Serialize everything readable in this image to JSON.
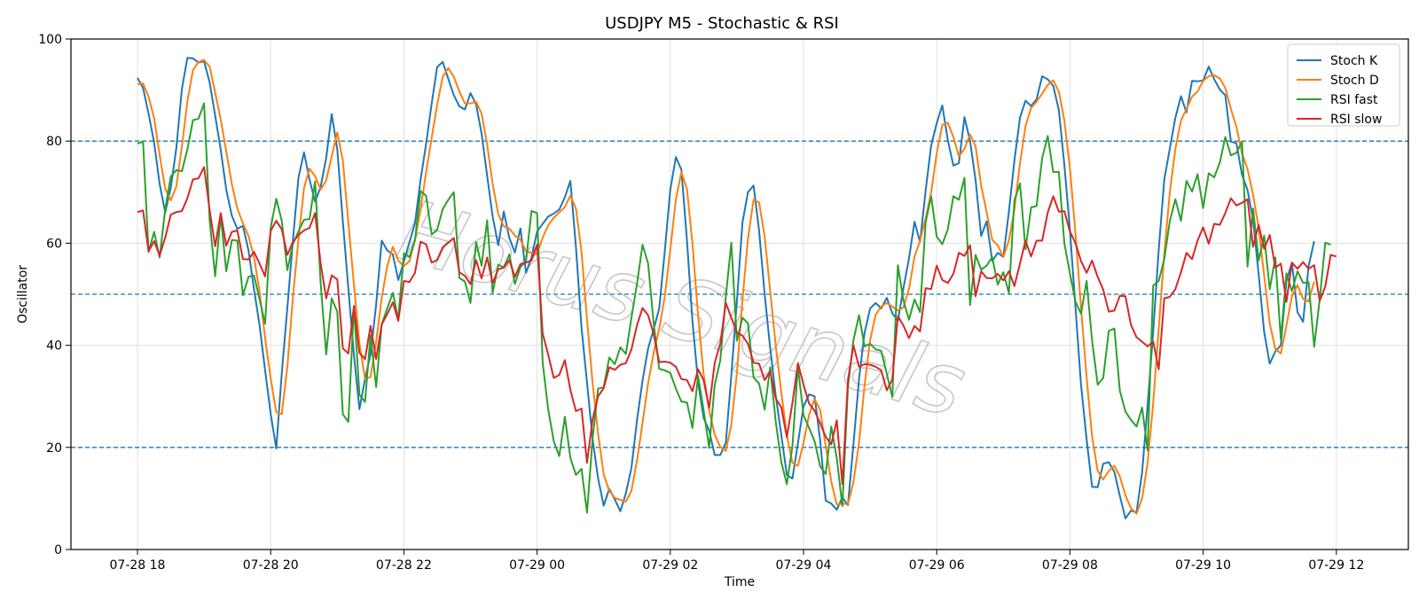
{
  "chart_data": {
    "type": "line",
    "title": "USDJPY M5 - Stochastic & RSI",
    "xlabel": "Time",
    "ylabel": "Oscillator",
    "ylim": [
      0,
      100
    ],
    "yticks": [
      0,
      20,
      40,
      60,
      80,
      100
    ],
    "xticks": [
      "07-28 18",
      "07-28 20",
      "07-28 22",
      "07-29 00",
      "07-29 02",
      "07-29 04",
      "07-29 06",
      "07-29 08",
      "07-29 10",
      "07-29 12"
    ],
    "x_start": "07-28 18:00",
    "x_step_minutes": 5,
    "grid": true,
    "legend_position": "top-right",
    "reference_lines": [
      80,
      50,
      20
    ],
    "watermark": "Horus Signals",
    "series": [
      {
        "name": "Stoch K",
        "color": "#1f77b4",
        "values": [
          92.4,
          90.4,
          85.4,
          79.7,
          71.6,
          66.0,
          70.9,
          78.6,
          90.2,
          96.3,
          96.2,
          95.4,
          95.6,
          91.5,
          85.0,
          78.3,
          70.5,
          65.4,
          62.8,
          63.4,
          58.6,
          51.0,
          43.9,
          35.1,
          26.6,
          19.8,
          34.5,
          47.3,
          60.4,
          72.8,
          77.8,
          72.5,
          68.1,
          71.0,
          76.7,
          85.3,
          78.4,
          64.2,
          51.1,
          38.1,
          27.5,
          33.4,
          38.2,
          47.9,
          60.5,
          58.6,
          57.8,
          52.8,
          56.4,
          60.2,
          63.9,
          72.4,
          79.4,
          87.3,
          94.5,
          95.5,
          92.2,
          89.0,
          86.8,
          86.2,
          89.4,
          87.2,
          81.5,
          73.2,
          65.2,
          59.6,
          66.2,
          61.0,
          58.2,
          62.9,
          54.2,
          57.2,
          62.3,
          63.8,
          65.2,
          65.8,
          66.6,
          69.0,
          72.2,
          59.3,
          43.4,
          32.7,
          21.6,
          13.9,
          8.6,
          11.9,
          9.8,
          7.5,
          11.0,
          16.0,
          25.4,
          33.1,
          39.4,
          43.1,
          47.2,
          58.3,
          70.5,
          76.9,
          74.4,
          60.5,
          44.7,
          32.8,
          25.8,
          23.3,
          18.5,
          18.5,
          20.9,
          34.1,
          48.7,
          64.1,
          70.0,
          71.3,
          62.5,
          50.0,
          39.5,
          30.1,
          22.4,
          14.6,
          13.9,
          20.8,
          28.0,
          30.4,
          30.0,
          21.4,
          9.6,
          9.0,
          7.8,
          10.2,
          8.7,
          20.6,
          33.4,
          42.4,
          47.2,
          48.3,
          47.2,
          49.3,
          46.3,
          44.8,
          51.1,
          57.0,
          64.2,
          60.2,
          70.3,
          79.1,
          83.5,
          87.0,
          80.2,
          75.2,
          75.7,
          84.7,
          80.0,
          72.4,
          61.4,
          64.3,
          56.5,
          58.1,
          57.3,
          66.2,
          76.2,
          84.6,
          87.9,
          86.9,
          88.2,
          92.7,
          92.1,
          90.8,
          86.1,
          75.4,
          62.6,
          47.3,
          32.3,
          21.6,
          12.3,
          12.2,
          16.8,
          17.1,
          15.2,
          10.5,
          6.1,
          7.6,
          7.3,
          15.1,
          28.3,
          42.7,
          58.7,
          72.5,
          78.5,
          84.6,
          88.8,
          85.6,
          91.8,
          91.7,
          91.9,
          94.6,
          92.1,
          90.1,
          89.0,
          79.9,
          79.6,
          73.4,
          70.4,
          64.6,
          53.9,
          42.6,
          36.4,
          38.8,
          40.0,
          52.6,
          56.2,
          46.5,
          44.6,
          55.5,
          60.4
        ]
      },
      {
        "name": "Stoch D",
        "color": "#ff7f0e",
        "values": [
          91.1,
          91.3,
          88.7,
          84.5,
          77.3,
          70.7,
          68.4,
          71.1,
          79.0,
          87.8,
          93.9,
          95.5,
          95.9,
          94.6,
          89.5,
          84.2,
          78.0,
          71.6,
          66.8,
          63.9,
          61.4,
          57.3,
          50.5,
          41.4,
          33.6,
          26.9,
          26.5,
          35.8,
          49.2,
          60.7,
          70.8,
          74.6,
          73.1,
          70.5,
          72.3,
          77.0,
          81.7,
          76.2,
          64.0,
          51.8,
          40.3,
          33.4,
          33.8,
          40.7,
          49.3,
          55.5,
          59.3,
          56.6,
          55.5,
          56.5,
          60.6,
          66.6,
          73.8,
          80.6,
          87.1,
          92.6,
          94.3,
          92.6,
          89.7,
          87.4,
          87.4,
          87.7,
          85.4,
          79.3,
          71.6,
          65.7,
          63.3,
          62.9,
          61.5,
          60.7,
          58.4,
          58.1,
          57.9,
          61.1,
          63.5,
          65.0,
          66.0,
          67.1,
          69.3,
          66.8,
          58.3,
          45.1,
          32.6,
          22.7,
          14.7,
          11.5,
          10.1,
          9.7,
          9.4,
          11.5,
          17.5,
          24.8,
          32.6,
          38.5,
          43.2,
          49.5,
          58.7,
          68.6,
          73.9,
          70.6,
          59.9,
          46.0,
          34.4,
          27.3,
          22.5,
          20.1,
          19.3,
          24.5,
          34.6,
          49.0,
          60.9,
          68.5,
          68.0,
          61.3,
          50.7,
          39.9,
          30.7,
          22.4,
          17.0,
          16.4,
          20.9,
          26.4,
          29.5,
          27.3,
          20.3,
          13.3,
          8.8,
          9.0,
          8.9,
          13.2,
          20.9,
          32.1,
          41.0,
          46.0,
          47.6,
          48.3,
          47.6,
          46.8,
          47.4,
          51.0,
          57.4,
          60.5,
          64.9,
          69.9,
          77.6,
          83.2,
          83.6,
          80.8,
          77.0,
          78.5,
          81.3,
          79.0,
          71.3,
          66.1,
          60.7,
          59.6,
          57.3,
          60.5,
          66.6,
          75.7,
          82.9,
          86.5,
          87.7,
          89.3,
          91.0,
          91.9,
          89.7,
          84.1,
          74.7,
          61.8,
          47.4,
          33.7,
          22.1,
          15.4,
          13.7,
          15.4,
          16.4,
          14.3,
          10.6,
          8.1,
          7.0,
          10.0,
          16.9,
          28.7,
          43.2,
          58.0,
          69.9,
          78.5,
          84.0,
          86.3,
          88.7,
          89.7,
          91.8,
          92.7,
          92.9,
          92.3,
          90.4,
          86.3,
          82.8,
          77.6,
          74.5,
          69.5,
          63.0,
          53.7,
          44.3,
          39.3,
          38.4,
          43.8,
          49.6,
          51.8,
          49.1,
          48.6,
          52.5
        ]
      },
      {
        "name": "RSI fast",
        "color": "#2ca02c",
        "values": [
          79.5,
          79.9,
          58.3,
          62.2,
          57.2,
          66.7,
          73.1,
          74.3,
          74.1,
          78.4,
          84.1,
          84.4,
          87.4,
          64.5,
          53.5,
          65.5,
          54.5,
          60.6,
          60.5,
          49.8,
          53.4,
          53.7,
          49.0,
          44.2,
          63.0,
          68.7,
          64.4,
          54.7,
          59.8,
          62.3,
          64.6,
          64.7,
          72.1,
          52.3,
          38.2,
          49.2,
          46.6,
          26.5,
          25.0,
          47.7,
          30.3,
          28.9,
          42.0,
          31.8,
          44.1,
          47.2,
          50.3,
          45.1,
          58.0,
          57.3,
          60.6,
          70.2,
          69.3,
          61.7,
          62.6,
          66.7,
          68.5,
          70.0,
          53.2,
          52.5,
          48.3,
          60.2,
          55.6,
          64.5,
          50.3,
          55.8,
          55.3,
          57.8,
          52.0,
          55.3,
          56.5,
          66.3,
          65.9,
          36.6,
          27.5,
          21.2,
          18.3,
          26.0,
          18.0,
          14.6,
          15.8,
          7.2,
          21.8,
          31.5,
          31.8,
          37.6,
          36.3,
          39.6,
          38.3,
          45.4,
          52.1,
          59.7,
          56.0,
          44.4,
          35.4,
          35.1,
          34.6,
          31.5,
          29.0,
          28.8,
          23.8,
          34.0,
          27.4,
          19.9,
          32.3,
          37.0,
          49.5,
          60.1,
          40.9,
          45.4,
          44.3,
          33.7,
          32.5,
          27.4,
          35.7,
          25.0,
          17.1,
          12.8,
          20.2,
          35.8,
          26.3,
          23.8,
          21.2,
          16.3,
          14.8,
          24.1,
          17.9,
          8.5,
          31.8,
          41.0,
          45.9,
          39.8,
          40.3,
          39.2,
          38.9,
          34.4,
          29.9,
          55.7,
          48.8,
          45.0,
          49.0,
          46.5,
          64.1,
          69.2,
          61.3,
          59.8,
          62.7,
          69.2,
          68.5,
          72.8,
          47.9,
          57.7,
          54.8,
          55.6,
          57.3,
          51.9,
          54.3,
          50.2,
          68.4,
          71.7,
          58.8,
          67.0,
          67.3,
          76.7,
          81.0,
          73.9,
          74.0,
          60.0,
          54.1,
          48.5,
          46.2,
          52.6,
          40.9,
          32.3,
          33.6,
          42.8,
          43.3,
          31.1,
          27.0,
          25.4,
          24.1,
          27.8,
          19.4,
          51.7,
          52.6,
          56.9,
          64.3,
          68.6,
          64.4,
          72.2,
          70.1,
          73.5,
          66.9,
          73.7,
          72.9,
          75.8,
          80.8,
          77.2,
          77.7,
          79.9,
          55.4,
          66.8,
          56.6,
          61.5,
          51.0,
          57.2,
          41.2,
          54.1,
          50.6,
          54.5,
          52.2,
          52.4,
          39.7,
          48.9,
          60.1,
          59.7
        ]
      },
      {
        "name": "RSI slow",
        "color": "#d62728",
        "values": [
          66.1,
          66.4,
          58.4,
          60.4,
          57.6,
          61.1,
          65.6,
          66.1,
          66.3,
          68.8,
          72.5,
          72.7,
          74.9,
          66.5,
          59.4,
          65.9,
          59.5,
          62.2,
          62.5,
          56.9,
          56.8,
          58.3,
          56.0,
          53.5,
          62.4,
          64.4,
          62.7,
          57.7,
          60.2,
          61.6,
          62.5,
          63.0,
          65.9,
          56.1,
          49.2,
          53.7,
          52.9,
          39.4,
          38.4,
          47.7,
          38.5,
          37.3,
          43.8,
          37.3,
          44.1,
          46.1,
          48.4,
          44.8,
          52.6,
          52.4,
          54.2,
          60.3,
          59.8,
          56.2,
          56.7,
          59.2,
          60.1,
          61.0,
          54.3,
          53.6,
          52.0,
          56.7,
          53.1,
          57.2,
          52.2,
          54.9,
          55.2,
          56.7,
          53.4,
          55.9,
          56.2,
          56.6,
          59.7,
          42.3,
          38.2,
          33.6,
          34.2,
          37.1,
          31.3,
          27.1,
          27.6,
          17.0,
          25.5,
          30.0,
          31.6,
          35.7,
          35.2,
          36.2,
          36.5,
          39.2,
          44.0,
          47.3,
          45.9,
          42.2,
          36.7,
          36.8,
          36.6,
          35.8,
          33.4,
          33.2,
          31.0,
          35.3,
          33.2,
          27.7,
          36.6,
          40.3,
          48.3,
          45.4,
          42.5,
          41.9,
          40.3,
          36.6,
          36.4,
          33.2,
          34.9,
          29.6,
          27.8,
          22.0,
          28.7,
          36.5,
          32.3,
          28.6,
          27.2,
          24.7,
          22.1,
          20.6,
          25.3,
          12.8,
          33.2,
          40.0,
          35.8,
          36.3,
          36.2,
          35.8,
          35.1,
          31.2,
          33.3,
          45.7,
          43.9,
          41.4,
          43.8,
          42.7,
          51.2,
          51.0,
          55.6,
          52.8,
          52.2,
          54.0,
          58.1,
          57.5,
          59.6,
          49.6,
          54.5,
          53.2,
          53.1,
          54.0,
          52.7,
          54.5,
          51.6,
          56.0,
          60.5,
          57.4,
          60.5,
          60.5,
          66.0,
          69.2,
          66.2,
          66.3,
          62.3,
          60.0,
          56.5,
          54.2,
          56.6,
          53.4,
          50.9,
          46.6,
          46.8,
          49.7,
          49.6,
          44.0,
          41.6,
          40.7,
          39.8,
          40.7,
          35.3,
          49.2,
          49.5,
          51.0,
          54.3,
          58.1,
          56.9,
          60.5,
          63.1,
          59.9,
          63.8,
          63.6,
          65.9,
          68.8,
          67.4,
          67.9,
          68.6,
          59.3,
          63.6,
          58.9,
          61.6,
          55.2,
          56.0,
          48.5,
          56.2,
          55.0,
          56.3,
          55.0,
          55.7,
          48.7,
          51.5,
          57.7,
          57.4
        ]
      }
    ]
  }
}
